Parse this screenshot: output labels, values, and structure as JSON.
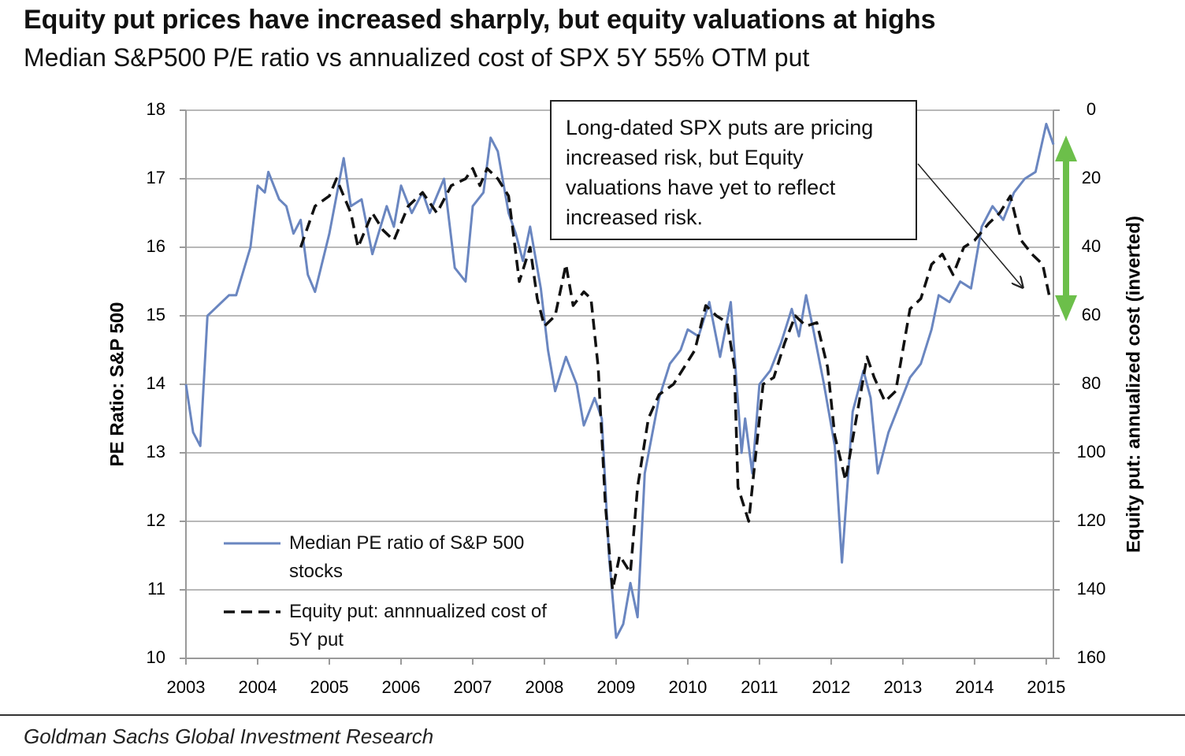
{
  "chart_data": {
    "type": "line",
    "title": "Equity put prices have increased sharply, but equity valuations at highs",
    "subtitle": "Median S&P500 P/E ratio vs annualized cost of SPX 5Y 55% OTM put",
    "y_label": "PE Ratio: S&P 500",
    "y2_label": "Equity put: annualized cost (inverted)",
    "annotation": "Long-dated SPX puts are pricing increased risk, but Equity valuations have yet to reflect increased risk.",
    "source": "Goldman Sachs Global Investment Research",
    "xlim": [
      2003,
      2015.1
    ],
    "xticks": [
      2003,
      2004,
      2005,
      2006,
      2007,
      2008,
      2009,
      2010,
      2011,
      2012,
      2013,
      2014,
      2015
    ],
    "ylim": [
      10,
      18
    ],
    "yticks": [
      10,
      11,
      12,
      13,
      14,
      15,
      16,
      17,
      18
    ],
    "y2lim": [
      0,
      160
    ],
    "y2_inverted": true,
    "y2ticks": [
      0,
      20,
      40,
      60,
      80,
      100,
      120,
      140,
      160
    ],
    "grid": true,
    "series": [
      {
        "name": "Median PE ratio of S&P 500 stocks",
        "color": "#6a86c0",
        "dash": false,
        "x": [
          2003.0,
          2003.1,
          2003.2,
          2003.3,
          2003.4,
          2003.6,
          2003.7,
          2003.9,
          2004.0,
          2004.1,
          2004.15,
          2004.3,
          2004.4,
          2004.5,
          2004.6,
          2004.7,
          2004.8,
          2005.0,
          2005.2,
          2005.3,
          2005.45,
          2005.6,
          2005.8,
          2005.9,
          2006.0,
          2006.15,
          2006.3,
          2006.4,
          2006.6,
          2006.75,
          2006.9,
          2007.0,
          2007.15,
          2007.25,
          2007.35,
          2007.5,
          2007.6,
          2007.7,
          2007.8,
          2007.95,
          2008.05,
          2008.15,
          2008.3,
          2008.45,
          2008.55,
          2008.7,
          2008.8,
          2008.9,
          2009.0,
          2009.1,
          2009.2,
          2009.3,
          2009.4,
          2009.6,
          2009.75,
          2009.9,
          2010.0,
          2010.15,
          2010.3,
          2010.45,
          2010.6,
          2010.75,
          2010.8,
          2010.9,
          2011.0,
          2011.15,
          2011.3,
          2011.45,
          2011.55,
          2011.65,
          2011.75,
          2011.9,
          2012.05,
          2012.15,
          2012.3,
          2012.45,
          2012.55,
          2012.65,
          2012.8,
          2012.95,
          2013.1,
          2013.25,
          2013.4,
          2013.5,
          2013.65,
          2013.8,
          2013.95,
          2014.1,
          2014.25,
          2014.4,
          2014.55,
          2014.7,
          2014.85,
          2015.0,
          2015.1
        ],
        "values": [
          14.0,
          13.3,
          13.1,
          15.0,
          15.1,
          15.3,
          15.3,
          16.0,
          16.9,
          16.8,
          17.1,
          16.7,
          16.6,
          16.2,
          16.4,
          15.6,
          15.35,
          16.2,
          17.3,
          16.6,
          16.7,
          15.9,
          16.6,
          16.3,
          16.9,
          16.5,
          16.8,
          16.5,
          17.0,
          15.7,
          15.5,
          16.6,
          16.8,
          17.6,
          17.4,
          16.5,
          16.2,
          15.8,
          16.3,
          15.4,
          14.5,
          13.9,
          14.4,
          14.0,
          13.4,
          13.8,
          13.5,
          11.5,
          10.3,
          10.5,
          11.1,
          10.6,
          12.7,
          13.8,
          14.3,
          14.5,
          14.8,
          14.7,
          15.2,
          14.4,
          15.2,
          13.0,
          13.5,
          12.7,
          14.0,
          14.2,
          14.6,
          15.1,
          14.7,
          15.3,
          14.8,
          14.0,
          13.1,
          11.4,
          13.6,
          14.2,
          13.8,
          12.7,
          13.3,
          13.7,
          14.1,
          14.3,
          14.8,
          15.3,
          15.2,
          15.5,
          15.4,
          16.3,
          16.6,
          16.4,
          16.8,
          17.0,
          17.1,
          17.8,
          17.5
        ]
      },
      {
        "name": "Equity put: annnualized cost of 5Y put",
        "color": "#111111",
        "dash": true,
        "axis": "y2",
        "x": [
          2004.6,
          2004.8,
          2005.0,
          2005.1,
          2005.3,
          2005.4,
          2005.6,
          2005.75,
          2005.9,
          2006.1,
          2006.3,
          2006.5,
          2006.7,
          2006.9,
          2007.0,
          2007.1,
          2007.2,
          2007.35,
          2007.5,
          2007.65,
          2007.8,
          2007.9,
          2008.0,
          2008.15,
          2008.3,
          2008.4,
          2008.55,
          2008.65,
          2008.75,
          2008.85,
          2008.95,
          2009.05,
          2009.2,
          2009.3,
          2009.45,
          2009.6,
          2009.8,
          2009.95,
          2010.1,
          2010.25,
          2010.4,
          2010.55,
          2010.65,
          2010.7,
          2010.85,
          2010.95,
          2011.05,
          2011.2,
          2011.35,
          2011.5,
          2011.65,
          2011.8,
          2011.95,
          2012.05,
          2012.2,
          2012.35,
          2012.5,
          2012.6,
          2012.75,
          2012.9,
          2013.1,
          2013.25,
          2013.4,
          2013.55,
          2013.7,
          2013.85,
          2014.0,
          2014.2,
          2014.35,
          2014.5,
          2014.65,
          2014.8,
          2014.95,
          2015.05
        ],
        "values": [
          40,
          28,
          25,
          20,
          30,
          40,
          30,
          35,
          38,
          28,
          24,
          30,
          22,
          20,
          17,
          22,
          17,
          20,
          25,
          50,
          40,
          55,
          63,
          60,
          45,
          57,
          53,
          55,
          75,
          115,
          140,
          130,
          135,
          110,
          90,
          83,
          80,
          75,
          70,
          57,
          60,
          62,
          75,
          110,
          120,
          100,
          80,
          78,
          68,
          60,
          63,
          62,
          75,
          95,
          108,
          90,
          72,
          78,
          85,
          82,
          58,
          55,
          45,
          42,
          48,
          40,
          38,
          33,
          30,
          25,
          38,
          42,
          45,
          55
        ]
      }
    ]
  }
}
